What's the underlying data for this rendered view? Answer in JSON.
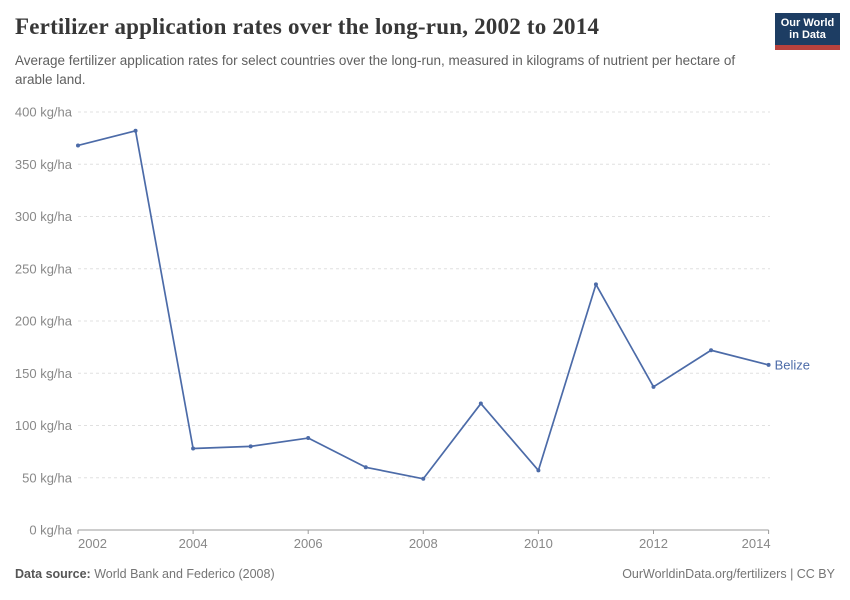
{
  "header": {
    "title": "Fertilizer application rates over the long-run, 2002 to 2014",
    "subtitle": "Average fertilizer application rates for select countries over the long-run, measured in kilograms of nutrient per hectare of arable land.",
    "logo": {
      "line1": "Our World",
      "line2": "in Data"
    }
  },
  "chart_data": {
    "type": "line",
    "title": "Fertilizer application rates over the long-run, 2002 to 2014",
    "xlabel": "",
    "ylabel": "",
    "xlim": [
      2002,
      2014
    ],
    "ylim": [
      0,
      400
    ],
    "x_ticks": [
      2002,
      2004,
      2006,
      2008,
      2010,
      2012,
      2014
    ],
    "y_ticks": [
      0,
      50,
      100,
      150,
      200,
      250,
      300,
      350,
      400
    ],
    "y_tick_suffix": " kg/ha",
    "grid": true,
    "legend_position": "end-of-line-label",
    "series": [
      {
        "name": "Belize",
        "color": "#4c6ba8",
        "x": [
          2002,
          2003,
          2004,
          2005,
          2006,
          2007,
          2008,
          2009,
          2010,
          2011,
          2012,
          2013,
          2014
        ],
        "values": [
          368,
          382,
          78,
          80,
          88,
          60,
          49,
          121,
          57,
          235,
          137,
          172,
          158
        ]
      }
    ]
  },
  "footer": {
    "source_label": "Data source:",
    "source_text": " World Bank and Federico (2008)",
    "credit": "OurWorldinData.org/fertilizers | CC BY"
  },
  "colors": {
    "line": "#4c6ba8",
    "logo_bg": "#1d3d63",
    "logo_accent": "#b8423e",
    "grid": "#e0e0e0",
    "axis": "#9b9b9b",
    "tick_text": "#888888"
  }
}
